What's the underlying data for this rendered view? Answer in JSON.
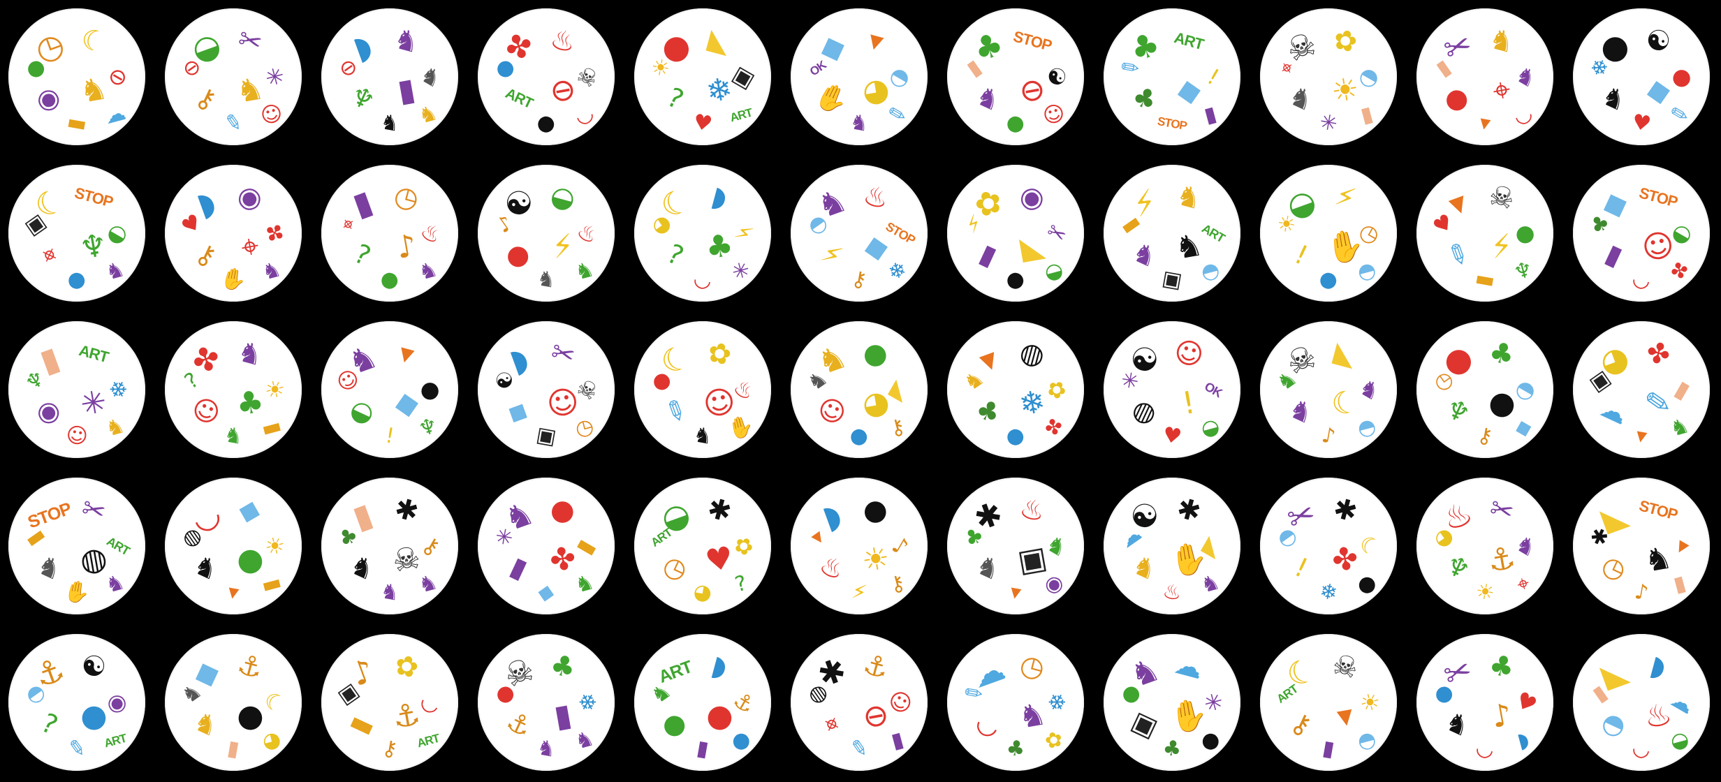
{
  "game": {
    "name": "",
    "layout": {
      "rows": 5,
      "columns": 11
    }
  },
  "symbols": {
    "anchor": {
      "glyph": "⚓",
      "color": "#d98a1a"
    },
    "apple": {
      "glyph": "●",
      "color": "#3fa52f"
    },
    "baby-bottle": {
      "glyph": "▮",
      "color": "#f0b08a"
    },
    "bomb": {
      "glyph": "●",
      "color": "#111111"
    },
    "candle": {
      "glyph": "▮",
      "color": "#7b3fa0"
    },
    "car": {
      "glyph": "▬",
      "color": "#e6a21a"
    },
    "carrot": {
      "glyph": "▾",
      "color": "#e8741f"
    },
    "cactus": {
      "glyph": "♆",
      "color": "#3fa52f"
    },
    "cheese": {
      "glyph": "◣",
      "color": "#f2c82e"
    },
    "clock": {
      "glyph": "◷",
      "color": "#e08a1f"
    },
    "clown": {
      "glyph": "☺",
      "color": "#e0352f"
    },
    "clover": {
      "glyph": "♣",
      "color": "#3fa52f"
    },
    "daisy": {
      "glyph": "✿",
      "color": "#e8c21f"
    },
    "dinosaur": {
      "glyph": "♞",
      "color": "#3fa52f"
    },
    "dog": {
      "glyph": "♞",
      "color": "#e8b01f"
    },
    "dolphin": {
      "glyph": "◗",
      "color": "#2f8fd0"
    },
    "dragon": {
      "glyph": "♞",
      "color": "#7b3fa0"
    },
    "drop": {
      "glyph": "●",
      "color": "#2f8fd0"
    },
    "exclamation": {
      "glyph": "!",
      "color": "#e8c21f"
    },
    "eye": {
      "glyph": "◉",
      "color": "#7b3fa0"
    },
    "fire": {
      "glyph": "♨",
      "color": "#e0352f"
    },
    "ghost": {
      "glyph": "☁",
      "color": "#4fa8e0"
    },
    "hand": {
      "glyph": "✋",
      "color": "#7b3fa0"
    },
    "heart": {
      "glyph": "♥",
      "color": "#e0352f"
    },
    "ice-cube": {
      "glyph": "◆",
      "color": "#6fb8e8"
    },
    "igloo": {
      "glyph": "◓",
      "color": "#6fb8e8"
    },
    "key": {
      "glyph": "⚷",
      "color": "#d98a1a"
    },
    "knight": {
      "glyph": "♞",
      "color": "#111111"
    },
    "ladybug": {
      "glyph": "●",
      "color": "#e0352f"
    },
    "leaf": {
      "glyph": "✤",
      "color": "#e0352f"
    },
    "lightbulb": {
      "glyph": "◕",
      "color": "#e8c21f"
    },
    "lightning": {
      "glyph": "⚡",
      "color": "#f0c21f"
    },
    "lips": {
      "glyph": "◡",
      "color": "#e0352f"
    },
    "lock": {
      "glyph": "▣",
      "color": "#222222"
    },
    "moon": {
      "glyph": "☾",
      "color": "#f0c21f"
    },
    "no-entry": {
      "glyph": "⊖",
      "color": "#e0352f"
    },
    "pencil": {
      "glyph": "✎",
      "color": "#4fa8e0"
    },
    "cat": {
      "glyph": "♞",
      "color": "#7b3fa0"
    },
    "question-mark": {
      "glyph": "?",
      "color": "#3fa52f"
    },
    "scissors": {
      "glyph": "✂",
      "color": "#7b3fa0"
    },
    "skull": {
      "glyph": "☠",
      "color": "#333333"
    },
    "snowflake": {
      "glyph": "❄",
      "color": "#2f8fd0"
    },
    "snowman": {
      "glyph": "☃",
      "color": "#4fa8e0"
    },
    "spider": {
      "glyph": "✱",
      "color": "#111111"
    },
    "spider-web": {
      "glyph": "✳",
      "color": "#7b3fa0"
    },
    "sun": {
      "glyph": "☀",
      "color": "#f0b81f"
    },
    "sunglasses": {
      "glyph": "◍",
      "color": "#111111"
    },
    "target": {
      "glyph": "⌖",
      "color": "#e0352f"
    },
    "treble-clef": {
      "glyph": "♪",
      "color": "#d98a1a"
    },
    "tree": {
      "glyph": "♣",
      "color": "#3f8a2f"
    },
    "turtle": {
      "glyph": "◒",
      "color": "#3fa52f"
    },
    "yin-yang": {
      "glyph": "☯",
      "color": "#111111"
    },
    "zebra": {
      "glyph": "♞",
      "color": "#555555"
    },
    "stop-sign": {
      "text": "STOP",
      "color": "#e8741f"
    },
    "art-word": {
      "text": "ART",
      "color": "#3fa52f"
    },
    "ok-word": {
      "text": "OK",
      "color": "#7b3fa0"
    }
  },
  "cards": [
    [
      "clock",
      "moon",
      "no-entry",
      "dog",
      "eye",
      "apple",
      "car",
      "ghost"
    ],
    [
      "turtle",
      "scissors",
      "spider-web",
      "dog",
      "key",
      "no-entry",
      "pencil",
      "clown"
    ],
    [
      "dolphin",
      "cat",
      "zebra",
      "candle",
      "cactus",
      "no-entry",
      "knight",
      "dog"
    ],
    [
      "leaf",
      "fire",
      "skull",
      "no-entry",
      "art-word",
      "drop",
      "bomb",
      "lips"
    ],
    [
      "ladybug",
      "cheese",
      "lock",
      "snowflake",
      "question-mark",
      "sun",
      "heart",
      "art-word"
    ],
    [
      "ice-cube",
      "carrot",
      "igloo",
      "lightbulb",
      "hand",
      "ok-word",
      "dragon",
      "pencil"
    ],
    [
      "clover",
      "stop-sign",
      "yin-yang",
      "no-entry",
      "dragon",
      "baby-bottle",
      "apple",
      "clown"
    ],
    [
      "clover",
      "art-word",
      "exclamation",
      "ice-cube",
      "tree",
      "pencil",
      "stop-sign",
      "candle"
    ],
    [
      "skull",
      "daisy",
      "igloo",
      "sun",
      "zebra",
      "target",
      "spider-web",
      "baby-bottle"
    ],
    [
      "scissors",
      "dog",
      "cat",
      "target",
      "ladybug",
      "baby-bottle",
      "carrot",
      "lips"
    ],
    [
      "bomb",
      "yin-yang",
      "ladybug",
      "ice-cube",
      "knight",
      "snowflake",
      "heart",
      "pencil"
    ],
    [
      "moon",
      "stop-sign",
      "turtle",
      "cactus",
      "target",
      "lock",
      "drop",
      "cat"
    ],
    [
      "dolphin",
      "eye",
      "leaf",
      "target",
      "key",
      "heart",
      "hand",
      "cat"
    ],
    [
      "candle",
      "clock",
      "fire",
      "treble-clef",
      "question-mark",
      "target",
      "apple",
      "dragon"
    ],
    [
      "yin-yang",
      "turtle",
      "fire",
      "lightning",
      "ladybug",
      "treble-clef",
      "zebra",
      "dinosaur"
    ],
    [
      "moon",
      "dolphin",
      "lightning",
      "clover",
      "question-mark",
      "lightbulb",
      "lips",
      "spider-web"
    ],
    [
      "cat",
      "fire",
      "stop-sign",
      "ice-cube",
      "lightning",
      "igloo",
      "key",
      "snowflake"
    ],
    [
      "daisy",
      "eye",
      "scissors",
      "cheese",
      "candle",
      "lightning",
      "bomb",
      "turtle"
    ],
    [
      "lightning",
      "dog",
      "art-word",
      "knight",
      "dragon",
      "car",
      "lock",
      "igloo"
    ],
    [
      "turtle",
      "lightning",
      "clock",
      "hand",
      "exclamation",
      "sun",
      "drop",
      "igloo"
    ],
    [
      "carrot",
      "skull",
      "apple",
      "lightning",
      "pencil",
      "heart",
      "car",
      "cactus"
    ],
    [
      "ice-cube",
      "stop-sign",
      "turtle",
      "clown",
      "candle",
      "tree",
      "lips",
      "leaf"
    ],
    [
      "baby-bottle",
      "art-word",
      "snowflake",
      "spider-web",
      "eye",
      "cactus",
      "clown",
      "dog"
    ],
    [
      "leaf",
      "cat",
      "sun",
      "clover",
      "clown",
      "question-mark",
      "dinosaur",
      "car"
    ],
    [
      "dragon",
      "carrot",
      "bomb",
      "ice-cube",
      "turtle",
      "clown",
      "exclamation",
      "cactus"
    ],
    [
      "dolphin",
      "scissors",
      "skull",
      "clown",
      "ice-cube",
      "yin-yang",
      "lock",
      "clock"
    ],
    [
      "moon",
      "daisy",
      "fire",
      "clown",
      "pencil",
      "ladybug",
      "knight",
      "hand"
    ],
    [
      "dog",
      "apple",
      "cheese",
      "lightbulb",
      "clown",
      "zebra",
      "drop",
      "key"
    ],
    [
      "carrot",
      "sunglasses",
      "daisy",
      "snowflake",
      "tree",
      "dog",
      "drop",
      "leaf"
    ],
    [
      "yin-yang",
      "clown",
      "ok-word",
      "exclamation",
      "sunglasses",
      "spider-web",
      "heart",
      "turtle"
    ],
    [
      "skull",
      "cheese",
      "cat",
      "moon",
      "dragon",
      "dinosaur",
      "treble-clef",
      "igloo"
    ],
    [
      "ladybug",
      "clover",
      "igloo",
      "bomb",
      "cactus",
      "clock",
      "key",
      "ice-cube"
    ],
    [
      "lightbulb",
      "leaf",
      "baby-bottle",
      "pencil",
      "ghost",
      "lock",
      "carrot",
      "dinosaur"
    ],
    [
      "stop-sign",
      "scissors",
      "art-word",
      "sunglasses",
      "zebra",
      "car",
      "hand",
      "dragon"
    ],
    [
      "lips",
      "ice-cube",
      "sun",
      "apple",
      "knight",
      "sunglasses",
      "carrot",
      "car"
    ],
    [
      "baby-bottle",
      "spider",
      "key",
      "skull",
      "knight",
      "tree",
      "cat",
      "dragon"
    ],
    [
      "dragon",
      "ladybug",
      "car",
      "leaf",
      "candle",
      "spider-web",
      "ice-cube",
      "dinosaur"
    ],
    [
      "turtle",
      "spider",
      "daisy",
      "heart",
      "clock",
      "art-word",
      "lightbulb",
      "question-mark"
    ],
    [
      "dolphin",
      "bomb",
      "treble-clef",
      "sun",
      "fire",
      "carrot",
      "lightning",
      "key"
    ],
    [
      "spider",
      "fire",
      "dinosaur",
      "lock",
      "zebra",
      "clover",
      "carrot",
      "eye"
    ],
    [
      "yin-yang",
      "spider",
      "cheese",
      "hand",
      "dog",
      "ghost",
      "fire",
      "cat"
    ],
    [
      "scissors",
      "spider",
      "moon",
      "leaf",
      "exclamation",
      "igloo",
      "snowflake",
      "bomb"
    ],
    [
      "fire",
      "scissors",
      "dragon",
      "anchor",
      "cactus",
      "lightbulb",
      "sun",
      "target"
    ],
    [
      "cheese",
      "stop-sign",
      "carrot",
      "knight",
      "clock",
      "spider",
      "treble-clef",
      "baby-bottle"
    ],
    [
      "anchor",
      "yin-yang",
      "eye",
      "drop",
      "question-mark",
      "igloo",
      "pencil",
      "art-word"
    ],
    [
      "ice-cube",
      "anchor",
      "moon",
      "bomb",
      "dog",
      "zebra",
      "baby-bottle",
      "lightbulb"
    ],
    [
      "treble-clef",
      "daisy",
      "lips",
      "anchor",
      "car",
      "lock",
      "key",
      "art-word"
    ],
    [
      "skull",
      "clover",
      "snowflake",
      "candle",
      "anchor",
      "ladybug",
      "cat",
      "dragon"
    ],
    [
      "art-word",
      "dolphin",
      "anchor",
      "ladybug",
      "apple",
      "dinosaur",
      "candle",
      "drop"
    ],
    [
      "spider",
      "anchor",
      "clown",
      "no-entry",
      "target",
      "sunglasses",
      "pencil",
      "candle"
    ],
    [
      "ghost",
      "clock",
      "snowflake",
      "dragon",
      "lips",
      "pencil",
      "tree",
      "daisy"
    ],
    [
      "cat",
      "ghost",
      "spider-web",
      "hand",
      "lock",
      "apple",
      "tree",
      "bomb"
    ],
    [
      "moon",
      "skull",
      "sun",
      "carrot",
      "key",
      "art-word",
      "candle",
      "igloo"
    ],
    [
      "scissors",
      "clover",
      "heart",
      "treble-clef",
      "knight",
      "drop",
      "lips",
      "dolphin"
    ],
    [
      "cheese",
      "dolphin",
      "ghost",
      "fire",
      "igloo",
      "baby-bottle",
      "lips",
      "turtle"
    ]
  ]
}
